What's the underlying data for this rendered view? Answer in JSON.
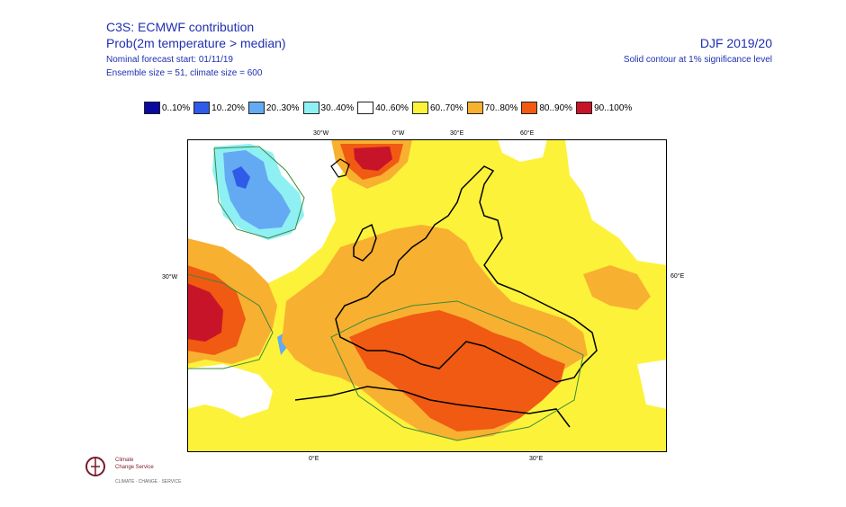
{
  "header": {
    "title": "C3S: ECMWF contribution",
    "subtitle": "Prob(2m temperature > median)",
    "forecast_start": "Nominal forecast start: 01/11/19",
    "ensemble": "Ensemble size = 51, climate size = 600",
    "period": "DJF 2019/20",
    "note": "Solid contour at 1% significance level"
  },
  "legend": [
    {
      "label": "0..10%",
      "color": "#0a0aa0"
    },
    {
      "label": "10..20%",
      "color": "#2f5bea"
    },
    {
      "label": "20..30%",
      "color": "#64aaf2"
    },
    {
      "label": "30..40%",
      "color": "#8ff0f4"
    },
    {
      "label": "40..60%",
      "color": "#ffffff"
    },
    {
      "label": "60..70%",
      "color": "#fdf23a"
    },
    {
      "label": "70..80%",
      "color": "#f8b030"
    },
    {
      "label": "80..90%",
      "color": "#f05a12"
    },
    {
      "label": "90..100%",
      "color": "#c81428"
    }
  ],
  "map_labels": {
    "top": [
      "30°W",
      "0°W",
      "30°E",
      "60°E"
    ],
    "left": "30°W",
    "right": "60°E",
    "bottom": [
      "0°E",
      "30°E"
    ]
  },
  "logo": {
    "line1": "Climate",
    "line2": "Change Service",
    "line3": "CLIMATE · CHANGE · SERVICE"
  }
}
